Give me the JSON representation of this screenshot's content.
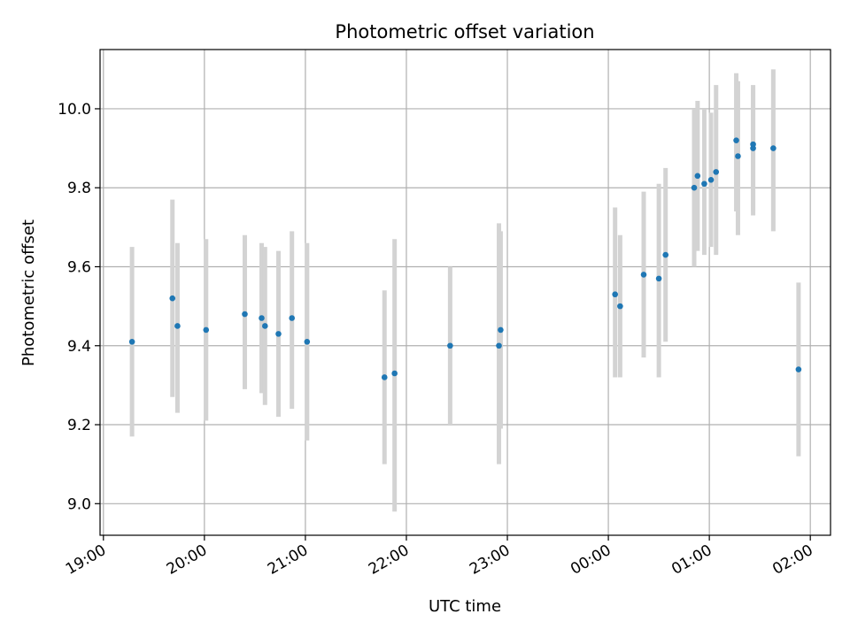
{
  "chart_data": {
    "type": "scatter",
    "title": "Photometric offset variation",
    "xlabel": "UTC time",
    "ylabel": "Photometric offset",
    "x_ticks": [
      "19:00",
      "20:00",
      "21:00",
      "22:00",
      "23:00",
      "00:00",
      "01:00",
      "02:00"
    ],
    "x_tick_times_hours": [
      19,
      20,
      21,
      22,
      23,
      24,
      25,
      26
    ],
    "y_ticks": [
      9.0,
      9.2,
      9.4,
      9.6,
      9.8,
      10.0
    ],
    "xlim": [
      "18:58",
      "02:12"
    ],
    "ylim": [
      8.92,
      10.15
    ],
    "grid": true,
    "legend": "none",
    "colors": {
      "point": "#1f77b4",
      "error_bar": "#d3d3d3",
      "grid": "#b0b0b0"
    },
    "points": [
      {
        "time": "19:17",
        "y": 9.41,
        "lo": 9.17,
        "hi": 9.65
      },
      {
        "time": "19:41",
        "y": 9.52,
        "lo": 9.27,
        "hi": 9.77
      },
      {
        "time": "19:44",
        "y": 9.45,
        "lo": 9.23,
        "hi": 9.66
      },
      {
        "time": "20:01",
        "y": 9.44,
        "lo": 9.21,
        "hi": 9.67
      },
      {
        "time": "20:24",
        "y": 9.48,
        "lo": 9.29,
        "hi": 9.68
      },
      {
        "time": "20:34",
        "y": 9.47,
        "lo": 9.28,
        "hi": 9.66
      },
      {
        "time": "20:36",
        "y": 9.45,
        "lo": 9.25,
        "hi": 9.65
      },
      {
        "time": "20:44",
        "y": 9.43,
        "lo": 9.22,
        "hi": 9.64
      },
      {
        "time": "20:52",
        "y": 9.47,
        "lo": 9.24,
        "hi": 9.69
      },
      {
        "time": "21:01",
        "y": 9.41,
        "lo": 9.16,
        "hi": 9.66
      },
      {
        "time": "21:47",
        "y": 9.32,
        "lo": 9.1,
        "hi": 9.54
      },
      {
        "time": "21:53",
        "y": 9.33,
        "lo": 8.98,
        "hi": 9.67
      },
      {
        "time": "22:26",
        "y": 9.4,
        "lo": 9.2,
        "hi": 9.6
      },
      {
        "time": "22:55",
        "y": 9.4,
        "lo": 9.1,
        "hi": 9.71
      },
      {
        "time": "22:56",
        "y": 9.44,
        "lo": 9.19,
        "hi": 9.69
      },
      {
        "time": "00:04",
        "y": 9.53,
        "lo": 9.32,
        "hi": 9.75
      },
      {
        "time": "00:07",
        "y": 9.5,
        "lo": 9.32,
        "hi": 9.68
      },
      {
        "time": "00:21",
        "y": 9.58,
        "lo": 9.37,
        "hi": 9.79
      },
      {
        "time": "00:30",
        "y": 9.57,
        "lo": 9.32,
        "hi": 9.81
      },
      {
        "time": "00:34",
        "y": 9.63,
        "lo": 9.41,
        "hi": 9.85
      },
      {
        "time": "00:51",
        "y": 9.8,
        "lo": 9.6,
        "hi": 10.0
      },
      {
        "time": "00:53",
        "y": 9.83,
        "lo": 9.64,
        "hi": 10.02
      },
      {
        "time": "00:57",
        "y": 9.81,
        "lo": 9.63,
        "hi": 10.0
      },
      {
        "time": "01:01",
        "y": 9.82,
        "lo": 9.65,
        "hi": 9.99
      },
      {
        "time": "01:04",
        "y": 9.84,
        "lo": 9.63,
        "hi": 10.06
      },
      {
        "time": "01:16",
        "y": 9.92,
        "lo": 9.74,
        "hi": 10.09
      },
      {
        "time": "01:17",
        "y": 9.88,
        "lo": 9.68,
        "hi": 10.07
      },
      {
        "time": "01:26",
        "y": 9.91,
        "lo": 9.74,
        "hi": 10.06
      },
      {
        "time": "01:26",
        "y": 9.9,
        "lo": 9.73,
        "hi": 10.05
      },
      {
        "time": "01:38",
        "y": 9.9,
        "lo": 9.69,
        "hi": 10.1
      },
      {
        "time": "01:53",
        "y": 9.34,
        "lo": 9.12,
        "hi": 9.56
      }
    ]
  }
}
